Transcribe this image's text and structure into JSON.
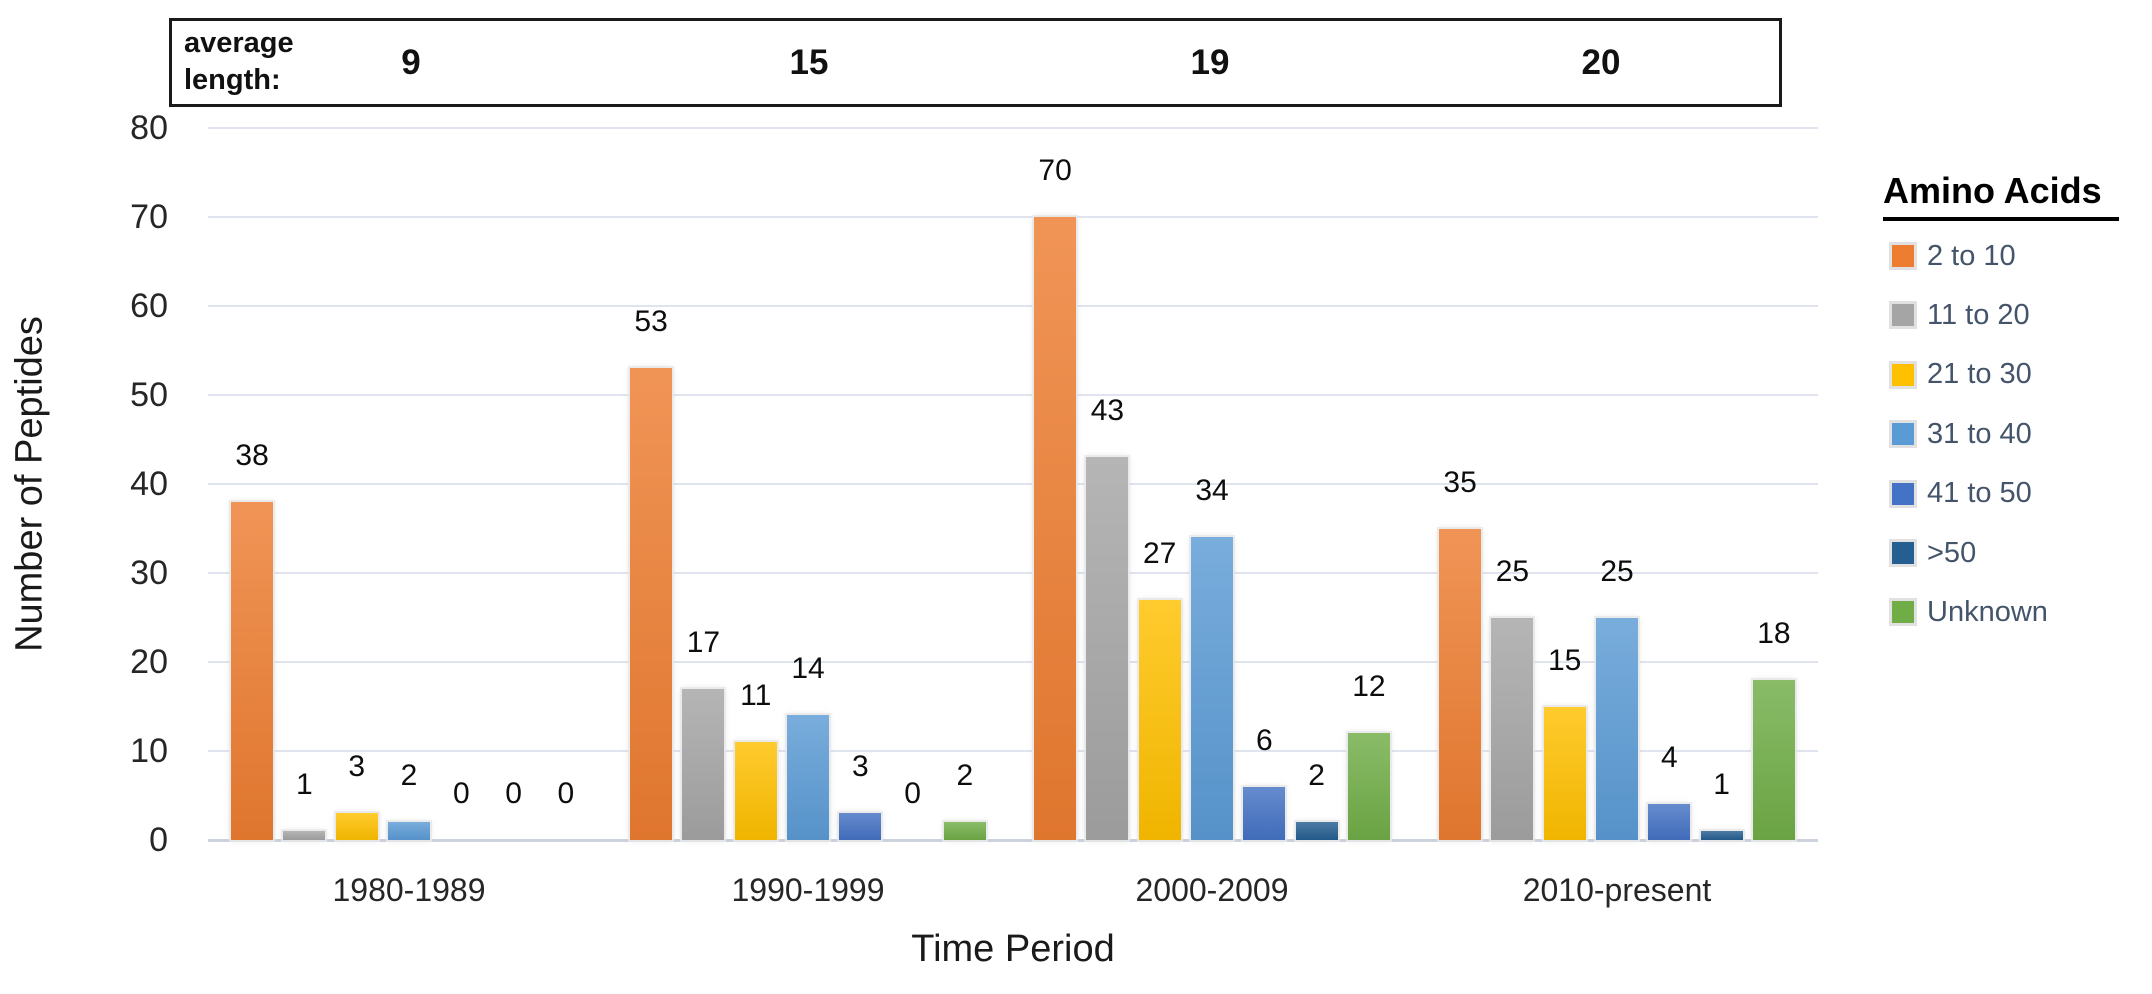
{
  "chart_data": {
    "type": "bar",
    "title": "",
    "xlabel": "Time Period",
    "ylabel": "Number of Peptides",
    "ylim": [
      0,
      80
    ],
    "ytick_step": 10,
    "grid": true,
    "legend_position": "right",
    "legend_title": "Amino Acids",
    "categories": [
      "1980-1989",
      "1990-1999",
      "2000-2009",
      "2010-present"
    ],
    "series": [
      {
        "name": "2 to 10",
        "color": "#ED7D31",
        "values": [
          38,
          53,
          70,
          35
        ]
      },
      {
        "name": "11 to 20",
        "color": "#A5A5A5",
        "values": [
          1,
          17,
          43,
          25
        ]
      },
      {
        "name": "21 to 30",
        "color": "#FFC000",
        "values": [
          3,
          11,
          27,
          15
        ]
      },
      {
        "name": "31 to 40",
        "color": "#5B9BD5",
        "values": [
          2,
          14,
          34,
          25
        ]
      },
      {
        "name": "41 to 50",
        "color": "#4472C4",
        "values": [
          0,
          3,
          6,
          4
        ]
      },
      {
        "name": ">50",
        "color": "#255E91",
        "values": [
          0,
          0,
          2,
          1
        ]
      },
      {
        "name": "Unknown",
        "color": "#70AD47",
        "values": [
          0,
          2,
          12,
          18
        ]
      }
    ],
    "average_length": {
      "label": "average length:",
      "values": [
        "9",
        "15",
        "19",
        "20"
      ]
    }
  }
}
